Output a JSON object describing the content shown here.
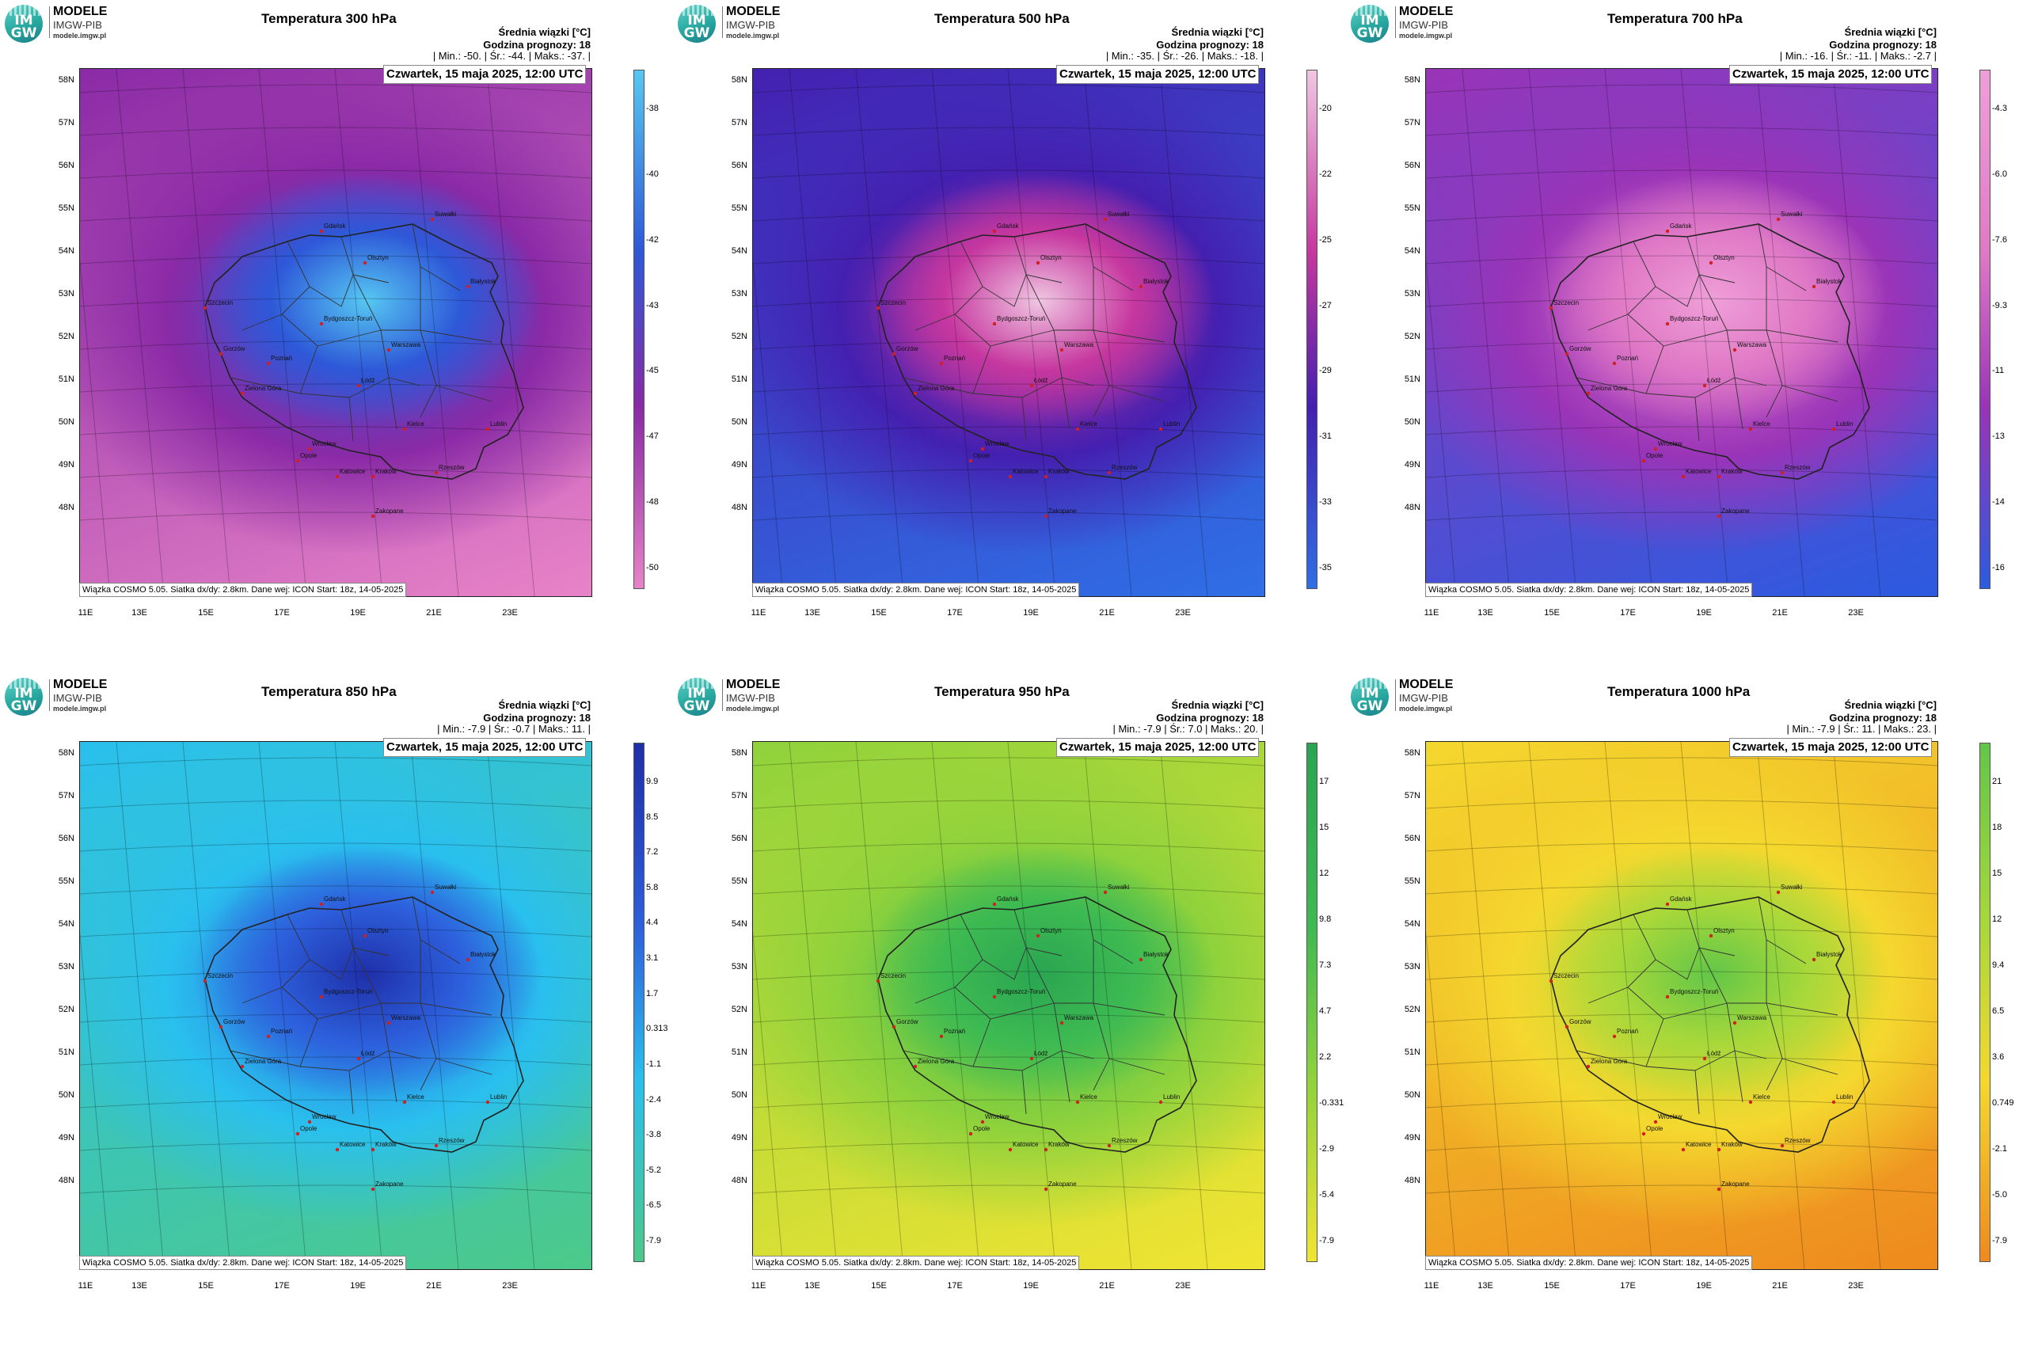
{
  "logo": {
    "letters_top": "IM",
    "letters_bottom": "GW",
    "title": "MODELE",
    "subtitle": "IMGW-PIB",
    "site": "modele.imgw.pl"
  },
  "date_label": "Czwartek, 15 maja 2025, 12:00 UTC",
  "footnote": "Wiązka COSMO 5.05. Siatka dx/dy: 2.8km. Dane wej: ICON Start: 18z, 14-05-2025",
  "info_line1": "Średnia wiązki [°C]",
  "info_line2": "Godzina prognozy: 18",
  "lat_ticks": [
    "58N",
    "57N",
    "56N",
    "55N",
    "54N",
    "53N",
    "52N",
    "51N",
    "50N",
    "49N",
    "48N"
  ],
  "lon_ticks": [
    "11E",
    "13E",
    "15E",
    "17E",
    "19E",
    "21E",
    "23E"
  ],
  "cities": [
    "Gdańsk",
    "Olsztyn",
    "Suwałki",
    "Białystok",
    "Szczecin",
    "Bydgoszcz-Toruń",
    "Gorzów",
    "Poznań",
    "Warszawa",
    "Zielona Góra",
    "Łódź",
    "Lublin",
    "Wrocław",
    "Kielce",
    "Opole",
    "Katowice",
    "Kraków",
    "Rzeszów",
    "Zakopane"
  ],
  "panels": [
    {
      "title": "Temperatura 300 hPa",
      "stats": "| Min.: -50. | Śr.: -44. | Maks.: -37. |",
      "colorbar": [
        "-38",
        "-40",
        "-42",
        "-43",
        "-45",
        "-47",
        "-48",
        "-50"
      ],
      "colors": {
        "outer": "#e883c8",
        "mid": "#8a2aa6",
        "core": "#2e58d8",
        "hot": "#56c8f2"
      }
    },
    {
      "title": "Temperatura 500 hPa",
      "stats": "| Min.: -35. | Śr.: -26. | Maks.: -18. |",
      "colorbar": [
        "-20",
        "-22",
        "-25",
        "-27",
        "-29",
        "-31",
        "-33",
        "-35"
      ],
      "colors": {
        "outer": "#2f6fe6",
        "mid": "#4420b0",
        "core": "#c6379f",
        "hot": "#f0c7e2"
      }
    },
    {
      "title": "Temperatura 700 hPa",
      "stats": "| Min.: -16. | Śr.: -11. | Maks.: -2.7 |",
      "colorbar": [
        "-4.3",
        "-6.0",
        "-7.6",
        "-9.3",
        "-11",
        "-13",
        "-14",
        "-16"
      ],
      "colors": {
        "outer": "#2b5be0",
        "mid": "#9a34b8",
        "core": "#e079c6",
        "hot": "#ef9fd8"
      }
    },
    {
      "title": "Temperatura 850 hPa",
      "stats": "| Min.: -7.9 | Śr.: -0.7 | Maks.: 11. |",
      "colorbar": [
        "9.9",
        "8.5",
        "7.2",
        "5.8",
        "4.4",
        "3.1",
        "1.7",
        "0.313",
        "-1.1",
        "-2.4",
        "-3.8",
        "-5.2",
        "-6.5",
        "-7.9"
      ],
      "colors": {
        "outer": "#4cc98a",
        "mid": "#2ac0ee",
        "core": "#2d5fdc",
        "hot": "#1f2fa8"
      }
    },
    {
      "title": "Temperatura 950 hPa",
      "stats": "| Min.: -7.9 | Śr.: 7.0 | Maks.: 20. |",
      "colorbar": [
        "17",
        "15",
        "12",
        "9.8",
        "7.3",
        "4.7",
        "2.2",
        "-0.331",
        "-2.9",
        "-5.4",
        "-7.9"
      ],
      "colors": {
        "outer": "#f2e432",
        "mid": "#8fd23c",
        "core": "#3dba52",
        "hot": "#2aa552"
      }
    },
    {
      "title": "Temperatura 1000 hPa",
      "stats": "| Min.: -7.9 | Śr.: 11. | Maks.: 23. |",
      "colorbar": [
        "21",
        "18",
        "15",
        "12",
        "9.4",
        "6.5",
        "3.6",
        "0.749",
        "-2.1",
        "-5.0",
        "-7.9"
      ],
      "colors": {
        "outer": "#ee8a1e",
        "mid": "#f4d82e",
        "core": "#a8d83a",
        "hot": "#62c648"
      }
    }
  ]
}
